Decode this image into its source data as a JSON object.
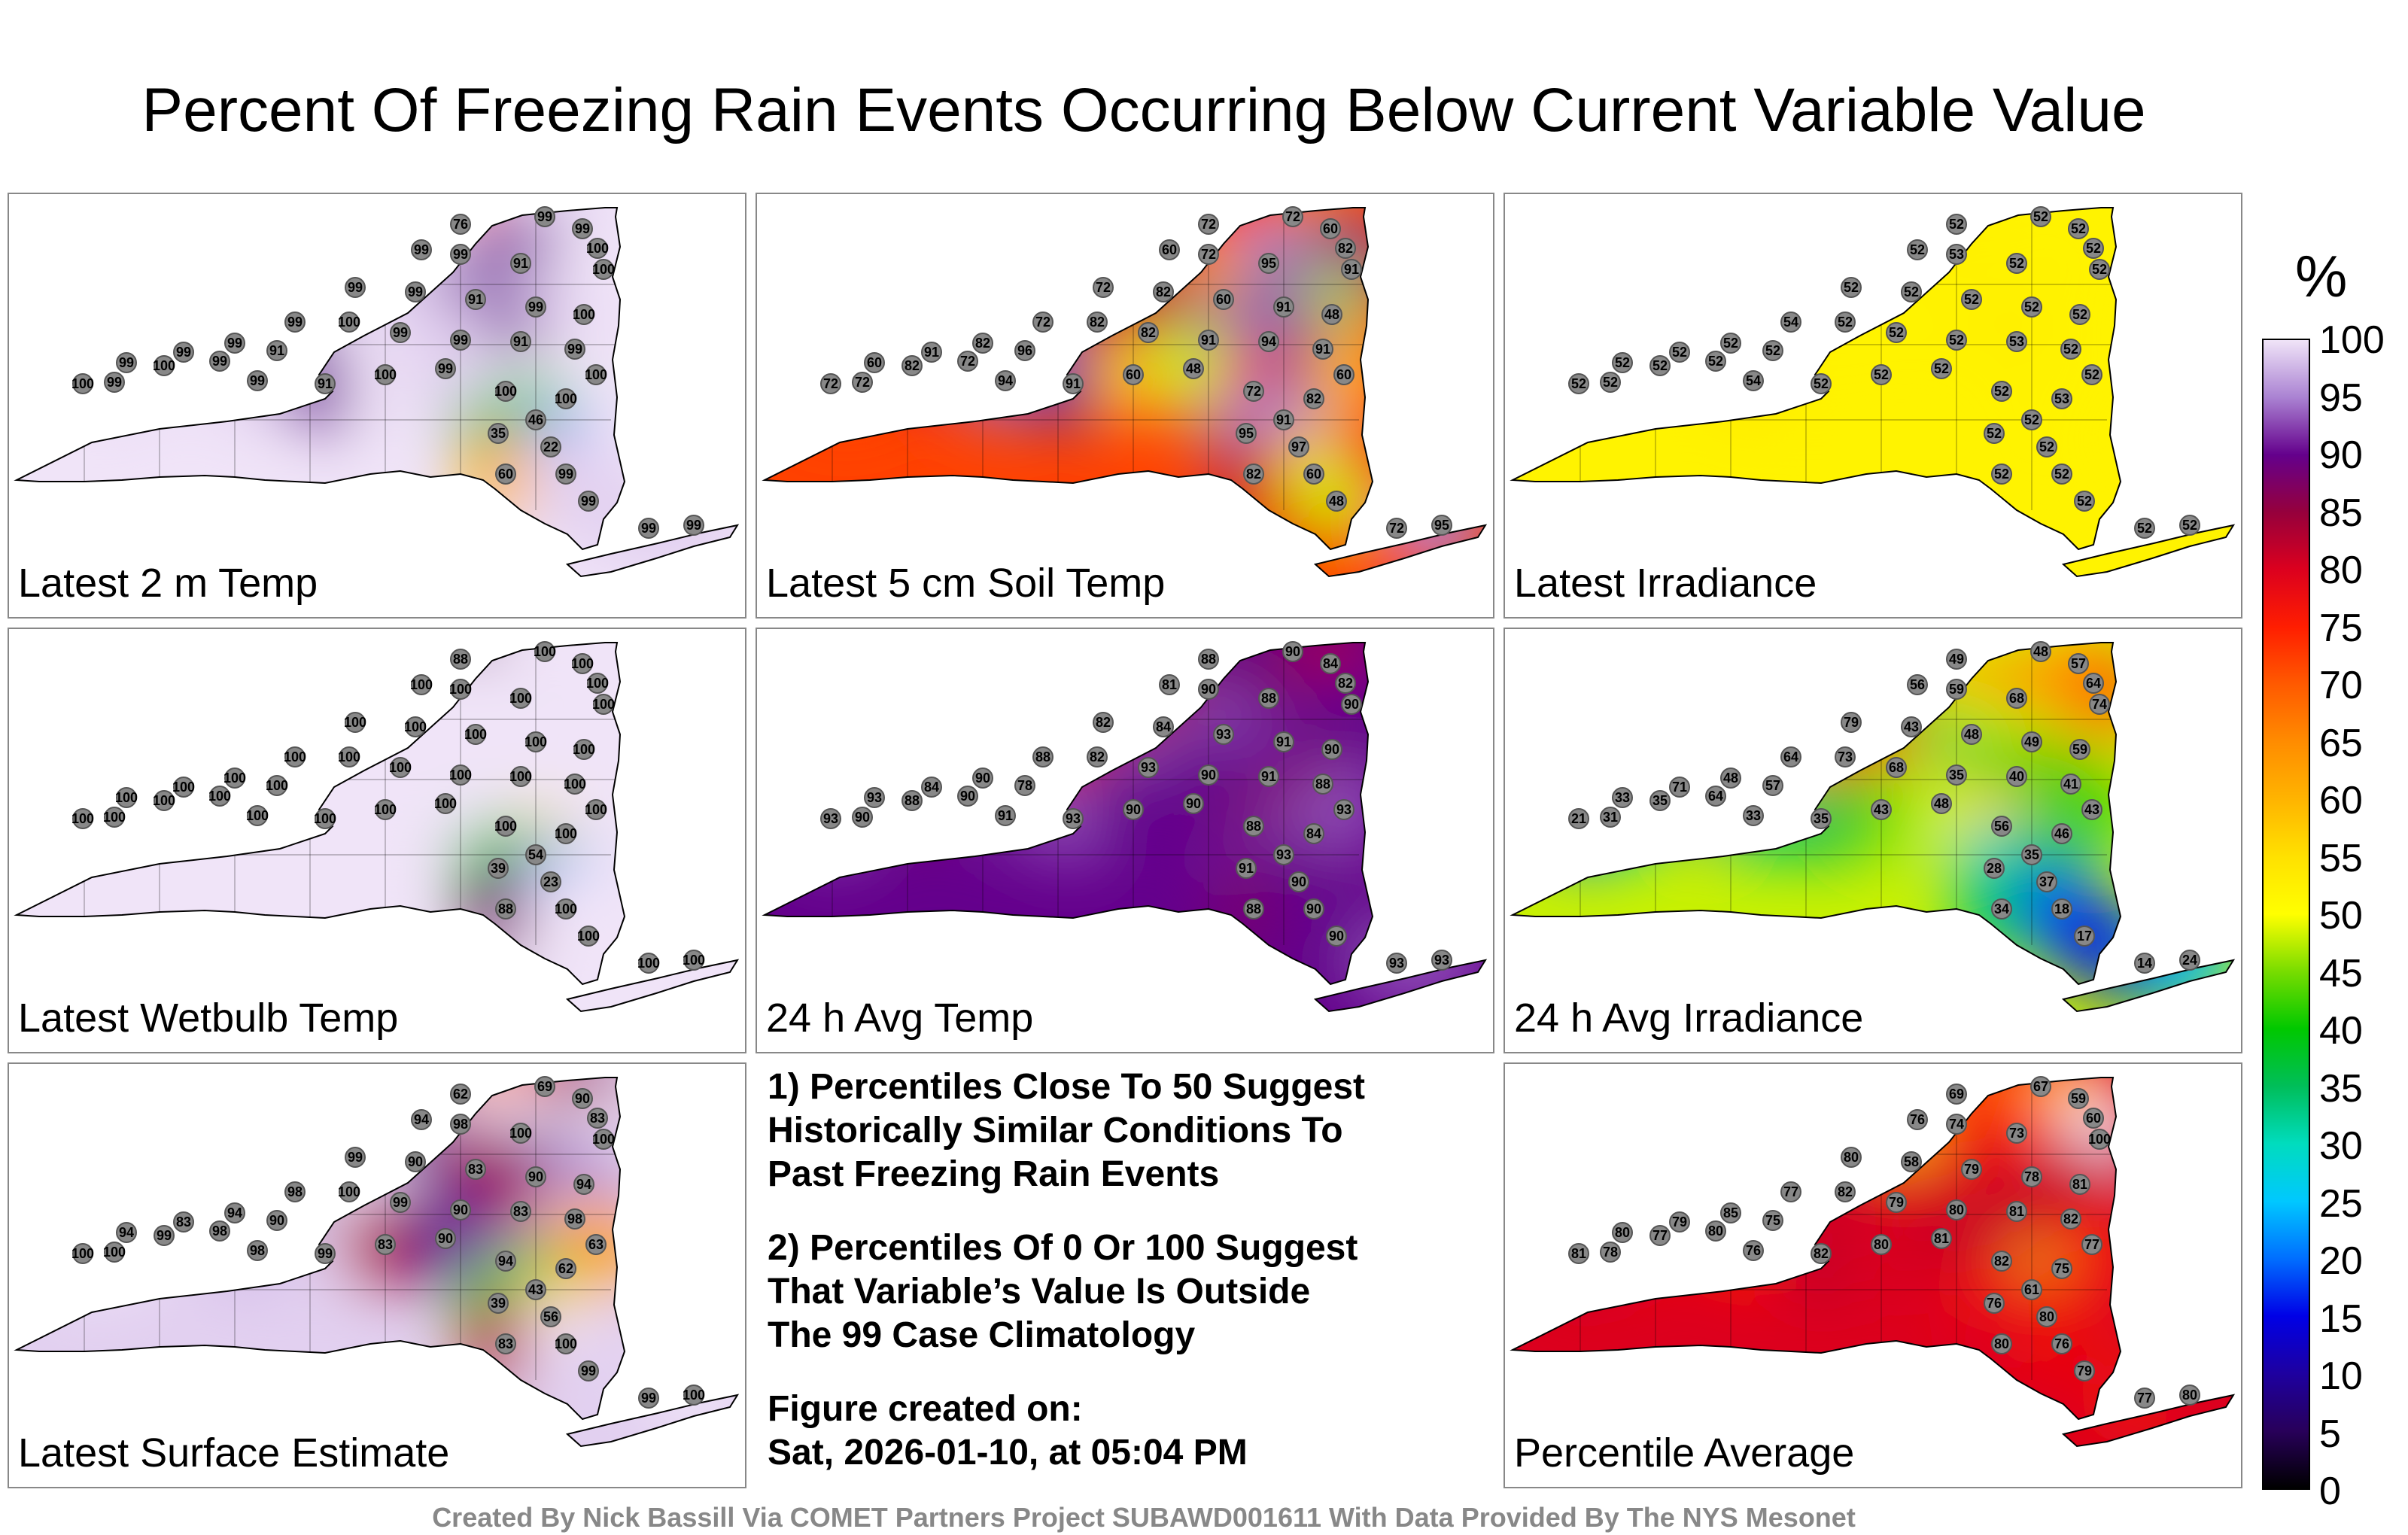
{
  "title": "Percent Of Freezing Rain Events Occurring Below Current Variable Value",
  "colorbar": {
    "unit": "%",
    "ticks": [
      "100",
      "95",
      "90",
      "85",
      "80",
      "75",
      "70",
      "65",
      "60",
      "55",
      "50",
      "45",
      "40",
      "35",
      "30",
      "25",
      "20",
      "15",
      "10",
      "5",
      "0"
    ]
  },
  "notes": {
    "line1": "1) Percentiles Close To 50 Suggest",
    "line2": "Historically Similar Conditions To",
    "line3": "Past Freezing Rain Events",
    "line4": "2) Percentiles Of 0 Or 100 Suggest",
    "line5": "That Variable’s Value Is Outside",
    "line6": "The 99 Case Climatology",
    "created_label": "Figure created on:",
    "created_date": "Sat, 2026-01-10, at 05:04 PM"
  },
  "credit": "Created By Nick Bassill Via COMET Partners Project SUBAWD001611 With Data Provided By The NYS Mesonet",
  "chart_data": [
    {
      "type": "heatmap",
      "title": "Latest 2 m Temp",
      "base": 100,
      "accent": {
        "low": 22,
        "high": 60
      },
      "values": [
        "76",
        "99",
        "99",
        "100",
        "99",
        "99",
        "91",
        "100",
        "99",
        "99",
        "91",
        "99",
        "100",
        "99",
        "100",
        "99",
        "99",
        "91",
        "99",
        "99",
        "91",
        "99",
        "99",
        "99",
        "100",
        "99",
        "100",
        "99",
        "91",
        "100",
        "99",
        "100",
        "100",
        "100",
        "46",
        "35",
        "22",
        "60",
        "99",
        "99",
        "99",
        "99"
      ]
    },
    {
      "type": "heatmap",
      "title": "Latest 5 cm Soil Temp",
      "base": 72,
      "accent": {
        "low": 48,
        "high": 95
      },
      "values": [
        "72",
        "72",
        "60",
        "82",
        "60",
        "72",
        "95",
        "91",
        "72",
        "82",
        "60",
        "91",
        "48",
        "72",
        "82",
        "82",
        "91",
        "94",
        "91",
        "82",
        "96",
        "91",
        "72",
        "60",
        "82",
        "72",
        "72",
        "94",
        "91",
        "60",
        "48",
        "72",
        "82",
        "60",
        "91",
        "95",
        "97",
        "82",
        "60",
        "48",
        "72",
        "95"
      ]
    },
    {
      "type": "heatmap",
      "title": "Latest Irradiance",
      "base": 52,
      "accent": {
        "low": 52,
        "high": 54
      },
      "values": [
        "52",
        "52",
        "52",
        "52",
        "52",
        "53",
        "52",
        "52",
        "52",
        "52",
        "52",
        "52",
        "52",
        "54",
        "52",
        "52",
        "52",
        "53",
        "52",
        "52",
        "52",
        "52",
        "52",
        "52",
        "52",
        "52",
        "52",
        "54",
        "52",
        "52",
        "52",
        "52",
        "53",
        "52",
        "52",
        "52",
        "52",
        "52",
        "52",
        "52",
        "52",
        "52"
      ]
    },
    {
      "type": "heatmap",
      "title": "Latest Wetbulb Temp",
      "base": 100,
      "accent": {
        "low": 23,
        "high": 88
      },
      "values": [
        "88",
        "100",
        "100",
        "100",
        "100",
        "100",
        "100",
        "100",
        "100",
        "100",
        "100",
        "100",
        "100",
        "100",
        "100",
        "100",
        "100",
        "100",
        "100",
        "100",
        "100",
        "100",
        "100",
        "100",
        "100",
        "100",
        "100",
        "100",
        "100",
        "100",
        "100",
        "100",
        "100",
        "100",
        "54",
        "39",
        "23",
        "88",
        "100",
        "100",
        "100",
        "100"
      ]
    },
    {
      "type": "heatmap",
      "title": "24 h Avg Temp",
      "base": 90,
      "accent": {
        "low": 78,
        "high": 93
      },
      "values": [
        "88",
        "90",
        "84",
        "82",
        "81",
        "90",
        "88",
        "90",
        "82",
        "84",
        "93",
        "91",
        "90",
        "88",
        "82",
        "93",
        "90",
        "91",
        "88",
        "90",
        "78",
        "84",
        "90",
        "93",
        "88",
        "90",
        "93",
        "91",
        "93",
        "90",
        "90",
        "88",
        "84",
        "93",
        "93",
        "91",
        "90",
        "88",
        "90",
        "90",
        "93",
        "93"
      ]
    },
    {
      "type": "heatmap",
      "title": "24 h Avg Irradiance",
      "base": 48,
      "accent": {
        "low": 14,
        "high": 79
      },
      "values": [
        "49",
        "48",
        "57",
        "64",
        "56",
        "59",
        "68",
        "74",
        "79",
        "43",
        "48",
        "49",
        "59",
        "64",
        "73",
        "68",
        "35",
        "40",
        "41",
        "48",
        "57",
        "71",
        "64",
        "33",
        "35",
        "31",
        "21",
        "33",
        "35",
        "43",
        "48",
        "56",
        "46",
        "43",
        "35",
        "28",
        "37",
        "34",
        "18",
        "17",
        "14",
        "24"
      ]
    },
    {
      "type": "heatmap",
      "title": "Latest Surface Estimate",
      "base": 99,
      "accent": {
        "low": 39,
        "high": 90
      },
      "values": [
        "62",
        "69",
        "90",
        "83",
        "94",
        "98",
        "100",
        "100",
        "99",
        "90",
        "83",
        "90",
        "94",
        "98",
        "100",
        "99",
        "90",
        "83",
        "98",
        "94",
        "90",
        "83",
        "98",
        "94",
        "99",
        "100",
        "100",
        "98",
        "99",
        "83",
        "90",
        "94",
        "62",
        "63",
        "43",
        "39",
        "56",
        "83",
        "100",
        "99",
        "99",
        "100"
      ]
    },
    {
      "type": "heatmap",
      "title": "Percentile Average",
      "base": 80,
      "accent": {
        "low": 56,
        "high": 100
      },
      "values": [
        "69",
        "67",
        "59",
        "60",
        "76",
        "74",
        "73",
        "100",
        "80",
        "58",
        "79",
        "78",
        "81",
        "77",
        "82",
        "79",
        "80",
        "81",
        "82",
        "85",
        "75",
        "79",
        "80",
        "80",
        "77",
        "78",
        "81",
        "76",
        "82",
        "80",
        "81",
        "82",
        "75",
        "77",
        "61",
        "76",
        "80",
        "80",
        "76",
        "79",
        "77",
        "80"
      ]
    }
  ]
}
